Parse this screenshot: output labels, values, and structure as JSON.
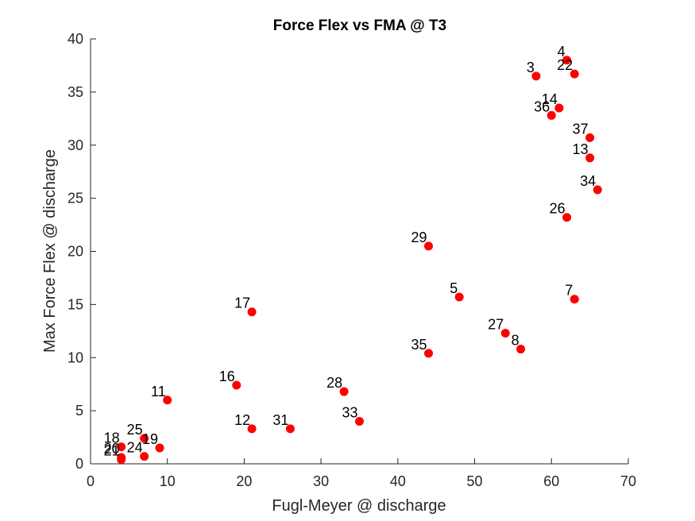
{
  "chart_data": {
    "type": "scatter",
    "title": "Force Flex vs FMA @ T3",
    "xlabel": "Fugl-Meyer @ discharge",
    "ylabel": "Max Force Flex @ discharge",
    "xlim": [
      0,
      70
    ],
    "ylim": [
      0,
      40
    ],
    "xticks": [
      0,
      10,
      20,
      30,
      40,
      50,
      60,
      70
    ],
    "yticks": [
      0,
      5,
      10,
      15,
      20,
      25,
      30,
      35,
      40
    ],
    "grid": false,
    "legend": "none",
    "marker_color": "#ff0000",
    "points": [
      {
        "label": "4",
        "x": 62,
        "y": 38.0
      },
      {
        "label": "22",
        "x": 63,
        "y": 36.7
      },
      {
        "label": "3",
        "x": 58,
        "y": 36.5
      },
      {
        "label": "14",
        "x": 61,
        "y": 33.5
      },
      {
        "label": "36",
        "x": 60,
        "y": 32.8
      },
      {
        "label": "37",
        "x": 65,
        "y": 30.7
      },
      {
        "label": "13",
        "x": 65,
        "y": 28.8
      },
      {
        "label": "34",
        "x": 66,
        "y": 25.8
      },
      {
        "label": "26",
        "x": 62,
        "y": 23.2
      },
      {
        "label": "29",
        "x": 44,
        "y": 20.5
      },
      {
        "label": "5",
        "x": 48,
        "y": 15.7
      },
      {
        "label": "7",
        "x": 63,
        "y": 15.5
      },
      {
        "label": "17",
        "x": 21,
        "y": 14.3
      },
      {
        "label": "27",
        "x": 54,
        "y": 12.3
      },
      {
        "label": "8",
        "x": 56,
        "y": 10.8
      },
      {
        "label": "35",
        "x": 44,
        "y": 10.4
      },
      {
        "label": "16",
        "x": 19,
        "y": 7.4
      },
      {
        "label": "28",
        "x": 33,
        "y": 6.8
      },
      {
        "label": "11",
        "x": 10,
        "y": 6.0
      },
      {
        "label": "33",
        "x": 35,
        "y": 4.0
      },
      {
        "label": "12",
        "x": 21,
        "y": 3.3
      },
      {
        "label": "31",
        "x": 26,
        "y": 3.3
      },
      {
        "label": "25",
        "x": 7,
        "y": 2.4
      },
      {
        "label": "19",
        "x": 9,
        "y": 1.5
      },
      {
        "label": "18",
        "x": 4,
        "y": 1.6
      },
      {
        "label": "24",
        "x": 7,
        "y": 0.7
      },
      {
        "label": "20",
        "x": 4,
        "y": 0.6
      },
      {
        "label": "21",
        "x": 4,
        "y": 0.4
      }
    ]
  }
}
